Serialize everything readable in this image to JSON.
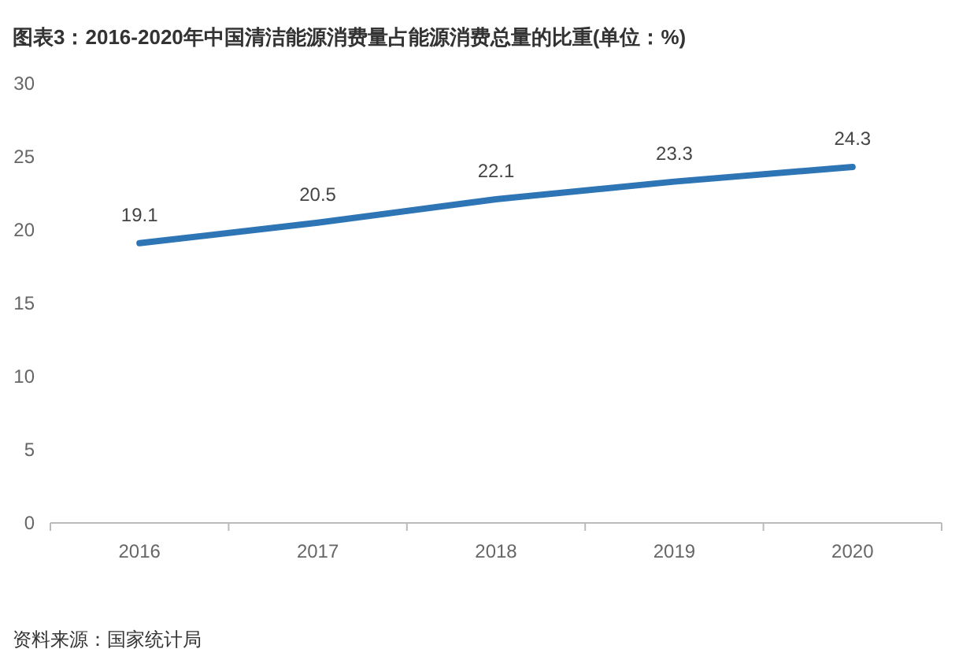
{
  "chart_data": {
    "type": "line",
    "title": "图表3：2016-2020年中国清洁能源消费量占能源消费总量的比重(单位：%)",
    "categories": [
      "2016",
      "2017",
      "2018",
      "2019",
      "2020"
    ],
    "series": [
      {
        "color": "#2e75b6",
        "values": [
          19.1,
          20.5,
          22.1,
          23.3,
          24.3
        ]
      }
    ],
    "ylim": [
      0,
      30
    ],
    "yticks": [
      0,
      5,
      10,
      15,
      20,
      25,
      30
    ],
    "data_labels": true,
    "annotations": [
      "资料来源：国家统计局"
    ]
  }
}
